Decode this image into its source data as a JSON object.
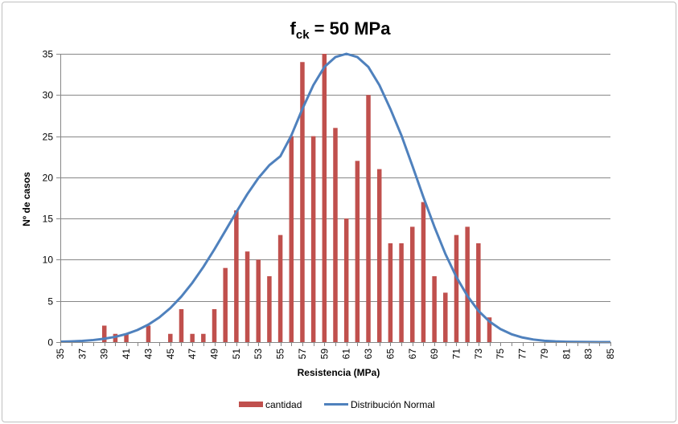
{
  "chart_data": {
    "type": "bar",
    "title": "f",
    "title_subscript": "ck",
    "title_rest": " = 50 MPa",
    "xlabel": "Resistencia (MPa)",
    "ylabel": "Nº de casos",
    "ylim": [
      0,
      35
    ],
    "yticks": [
      0,
      5,
      10,
      15,
      20,
      25,
      30,
      35
    ],
    "xlim": [
      35,
      85
    ],
    "xticks": [
      35,
      37,
      39,
      41,
      43,
      45,
      47,
      49,
      51,
      53,
      55,
      57,
      59,
      61,
      63,
      65,
      67,
      69,
      71,
      73,
      75,
      77,
      79,
      81,
      83,
      85
    ],
    "grid": "horizontal",
    "legend_position": "bottom",
    "series": [
      {
        "name": "cantidad",
        "type": "bar",
        "color": "#c0504d",
        "x": [
          39,
          40,
          41,
          43,
          45,
          46,
          47,
          48,
          49,
          50,
          51,
          52,
          53,
          54,
          55,
          56,
          57,
          58,
          59,
          60,
          61,
          62,
          63,
          64,
          65,
          66,
          67,
          68,
          69,
          70,
          71,
          72,
          73,
          74
        ],
        "values": [
          2,
          1,
          1,
          2,
          1,
          4,
          1,
          1,
          4,
          9,
          16,
          11,
          10,
          8,
          13,
          25,
          34,
          25,
          35,
          26,
          15,
          22,
          30,
          21,
          12,
          12,
          14,
          17,
          8,
          6,
          13,
          14,
          12,
          3
        ]
      },
      {
        "name": "Distribución Normal",
        "type": "line",
        "color": "#4f81bd",
        "x": [
          35,
          36,
          37,
          38,
          39,
          40,
          41,
          42,
          43,
          44,
          45,
          46,
          47,
          48,
          49,
          50,
          51,
          52,
          53,
          54,
          55,
          56,
          57,
          58,
          59,
          60,
          61,
          62,
          63,
          64,
          65,
          66,
          67,
          68,
          69,
          70,
          71,
          72,
          73,
          74,
          75,
          76,
          77,
          78,
          79,
          80,
          81,
          82,
          83,
          84,
          85
        ],
        "values": [
          0.05,
          0.09,
          0.15,
          0.25,
          0.41,
          0.64,
          0.98,
          1.46,
          2.12,
          3.0,
          4.13,
          5.53,
          7.2,
          9.12,
          11.25,
          13.51,
          15.79,
          17.97,
          19.91,
          21.48,
          22.56,
          25.1,
          28.3,
          31.2,
          33.4,
          34.6,
          35.0,
          34.6,
          33.4,
          31.2,
          28.3,
          25.1,
          21.4,
          17.6,
          14.0,
          10.7,
          7.9,
          5.6,
          3.8,
          2.5,
          1.58,
          0.96,
          0.56,
          0.31,
          0.16,
          0.08,
          0.04,
          0.02,
          0.01,
          0.0,
          0.0
        ]
      }
    ]
  }
}
